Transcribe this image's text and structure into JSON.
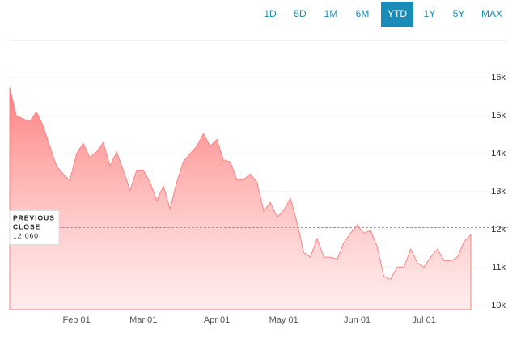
{
  "range_buttons": {
    "items": [
      "1D",
      "5D",
      "1M",
      "6M",
      "YTD",
      "1Y",
      "5Y",
      "MAX"
    ],
    "active": 4
  },
  "chart_data": {
    "type": "area",
    "categories": [
      null,
      null,
      null,
      null,
      null,
      null,
      null,
      null,
      null,
      null,
      "Feb 01",
      null,
      null,
      null,
      null,
      null,
      null,
      null,
      null,
      null,
      "Mar 01",
      null,
      null,
      null,
      null,
      null,
      null,
      null,
      null,
      null,
      null,
      "Apr 01",
      null,
      null,
      null,
      null,
      null,
      null,
      null,
      null,
      null,
      "May 01",
      null,
      null,
      null,
      null,
      null,
      null,
      null,
      null,
      null,
      null,
      "Jun 01",
      null,
      null,
      null,
      null,
      null,
      null,
      null,
      null,
      null,
      "Jul 01",
      null,
      null,
      null,
      null,
      null,
      null,
      null
    ],
    "values": [
      15740,
      15000,
      14920,
      14850,
      15100,
      14740,
      14200,
      13680,
      13470,
      13300,
      14000,
      14280,
      13900,
      14050,
      14300,
      13680,
      14050,
      13570,
      13040,
      13570,
      13570,
      13250,
      12770,
      13150,
      12550,
      13250,
      13800,
      14000,
      14200,
      14530,
      14200,
      14380,
      13830,
      13790,
      13320,
      13320,
      13470,
      13250,
      12500,
      12720,
      12340,
      12510,
      12830,
      12190,
      11400,
      11280,
      11770,
      11280,
      11280,
      11230,
      11660,
      11910,
      12130,
      11910,
      11980,
      11550,
      10770,
      10700,
      11020,
      11020,
      11490,
      11130,
      11020,
      11280,
      11490,
      11190,
      11190,
      11280,
      11700,
      11870
    ],
    "color": "#ff8080",
    "ylim": [
      9900,
      16600
    ],
    "yticks": [
      {
        "value": 10000,
        "label": "10k"
      },
      {
        "value": 11000,
        "label": "11k"
      },
      {
        "value": 12000,
        "label": "12k"
      },
      {
        "value": 13000,
        "label": "13k"
      },
      {
        "value": 14000,
        "label": "14k"
      },
      {
        "value": 15000,
        "label": "15k"
      },
      {
        "value": 16000,
        "label": "16k"
      }
    ],
    "grid": true,
    "previous_close": {
      "value": 12060,
      "label_lines": [
        "PREVIOUS",
        "CLOSE"
      ],
      "value_label": "12,060"
    }
  }
}
